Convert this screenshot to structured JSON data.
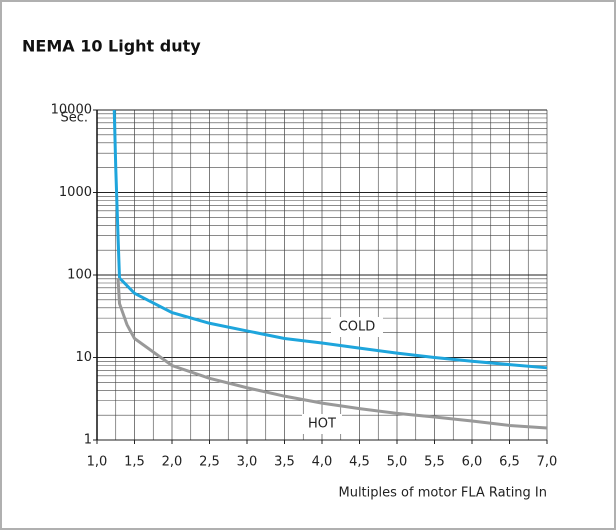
{
  "chart_data": {
    "type": "line",
    "title": "NEMA 10  Light duty",
    "y_label": "Sec.",
    "x_label": "Multiples of motor FLA Rating In",
    "log_y": true,
    "grid": true,
    "xlim": [
      1.0,
      7.0
    ],
    "ylim": [
      1,
      10000
    ],
    "xticks": [
      {
        "value": 1.0,
        "label": "1,0"
      },
      {
        "value": 1.5,
        "label": "1,5"
      },
      {
        "value": 2.0,
        "label": "2,0"
      },
      {
        "value": 2.5,
        "label": "2,5"
      },
      {
        "value": 3.0,
        "label": "3,0"
      },
      {
        "value": 3.5,
        "label": "3,5"
      },
      {
        "value": 4.0,
        "label": "4,0"
      },
      {
        "value": 4.5,
        "label": "4,5"
      },
      {
        "value": 5.0,
        "label": "5,0"
      },
      {
        "value": 5.5,
        "label": "5,5"
      },
      {
        "value": 6.0,
        "label": "6,0"
      },
      {
        "value": 6.5,
        "label": "6,5"
      },
      {
        "value": 7.0,
        "label": "7,0"
      }
    ],
    "yticks": [
      1,
      10,
      100,
      1000,
      10000
    ],
    "series": [
      {
        "name": "COLD",
        "color": "#1ea5dc",
        "x": [
          1.23,
          1.25,
          1.28,
          1.3,
          1.5,
          2.0,
          2.5,
          3.0,
          3.5,
          4.0,
          4.5,
          5.0,
          5.5,
          6.0,
          6.5,
          7.0
        ],
        "values": [
          10000,
          2000,
          300,
          92,
          60,
          35,
          26,
          21,
          17,
          15,
          13,
          11.3,
          10,
          9,
          8.2,
          7.5
        ]
      },
      {
        "name": "HOT",
        "color": "#999999",
        "x": [
          1.28,
          1.3,
          1.4,
          1.5,
          2.0,
          2.5,
          3.0,
          3.5,
          4.0,
          4.5,
          5.0,
          5.5,
          6.0,
          6.5,
          7.0
        ],
        "values": [
          92,
          45,
          25,
          17,
          8,
          5.6,
          4.3,
          3.4,
          2.8,
          2.4,
          2.1,
          1.9,
          1.7,
          1.5,
          1.4
        ]
      }
    ]
  }
}
